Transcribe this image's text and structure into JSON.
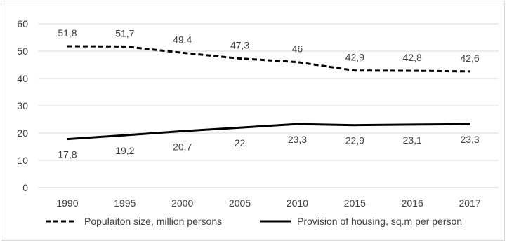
{
  "chart_data": {
    "type": "line",
    "categories": [
      "1990",
      "1995",
      "2000",
      "2005",
      "2010",
      "2015",
      "2016",
      "2017"
    ],
    "ylim": [
      0,
      60
    ],
    "yticks": [
      0,
      10,
      20,
      30,
      40,
      50,
      60
    ],
    "grid": true,
    "legend_position": "bottom",
    "series": [
      {
        "name": "Populaiton size, million persons",
        "style": "dashed",
        "color": "#000000",
        "values": [
          51.8,
          51.7,
          49.4,
          47.3,
          46,
          42.9,
          42.8,
          42.6
        ],
        "labels": [
          "51,8",
          "51,7",
          "49,4",
          "47,3",
          "46",
          "42,9",
          "42,8",
          "42,6"
        ]
      },
      {
        "name": "Provision of housing, sq.m per person",
        "style": "solid",
        "color": "#000000",
        "values": [
          17.8,
          19.2,
          20.7,
          22,
          23.3,
          22.9,
          23.1,
          23.3
        ],
        "labels": [
          "17,8",
          "19,2",
          "20,7",
          "22",
          "23,3",
          "22,9",
          "23,1",
          "23,3"
        ]
      }
    ]
  }
}
